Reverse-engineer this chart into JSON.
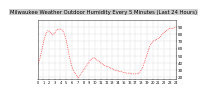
{
  "title": "Milwaukee Weather Outdoor Humidity Every 5 Minutes (Last 24 Hours)",
  "bg_color": "#ffffff",
  "plot_bg_color": "#ffffff",
  "grid_color": "#aaaaaa",
  "line_color": "#ff0000",
  "ylim": [
    18,
    100
  ],
  "xlim": [
    0,
    287
  ],
  "y_ticks": [
    20,
    30,
    40,
    50,
    60,
    70,
    80,
    90
  ],
  "y_tick_labels": [
    "20",
    "30",
    "40",
    "50",
    "60",
    "70",
    "80",
    "90"
  ],
  "title_fontsize": 3.8,
  "tick_fontsize": 3.0,
  "line_width": 0.5,
  "humidity": [
    38,
    40,
    42,
    44,
    46,
    49,
    52,
    55,
    58,
    61,
    64,
    67,
    70,
    73,
    75,
    77,
    79,
    81,
    82,
    83,
    84,
    85,
    85,
    84,
    83,
    83,
    82,
    82,
    81,
    80,
    79,
    79,
    79,
    80,
    81,
    82,
    83,
    84,
    85,
    86,
    86,
    87,
    87,
    87,
    87,
    87,
    87,
    87,
    87,
    86,
    86,
    85,
    84,
    83,
    82,
    80,
    78,
    76,
    74,
    71,
    68,
    65,
    62,
    58,
    55,
    51,
    48,
    45,
    42,
    39,
    37,
    35,
    33,
    31,
    29,
    28,
    27,
    26,
    25,
    24,
    23,
    22,
    21,
    20,
    20,
    20,
    21,
    22,
    23,
    24,
    25,
    26,
    27,
    28,
    29,
    30,
    31,
    32,
    33,
    34,
    35,
    36,
    37,
    38,
    39,
    40,
    41,
    42,
    43,
    44,
    45,
    45,
    46,
    46,
    47,
    47,
    47,
    47,
    47,
    46,
    46,
    45,
    45,
    44,
    44,
    43,
    43,
    42,
    42,
    41,
    41,
    40,
    40,
    39,
    39,
    38,
    38,
    37,
    37,
    37,
    36,
    36,
    36,
    35,
    35,
    35,
    35,
    34,
    34,
    34,
    33,
    33,
    33,
    32,
    32,
    32,
    32,
    31,
    31,
    31,
    31,
    30,
    30,
    30,
    30,
    30,
    29,
    29,
    29,
    29,
    29,
    28,
    28,
    28,
    28,
    28,
    28,
    27,
    27,
    27,
    27,
    27,
    27,
    27,
    26,
    26,
    26,
    26,
    26,
    26,
    26,
    26,
    26,
    25,
    25,
    25,
    25,
    25,
    25,
    25,
    25,
    25,
    25,
    25,
    25,
    25,
    25,
    25,
    26,
    26,
    26,
    27,
    27,
    28,
    29,
    30,
    31,
    32,
    33,
    35,
    37,
    39,
    41,
    43,
    45,
    47,
    49,
    51,
    53,
    55,
    57,
    59,
    61,
    63,
    64,
    66,
    67,
    68,
    68,
    69,
    70,
    70,
    71,
    71,
    71,
    72,
    72,
    72,
    73,
    73,
    74,
    74,
    75,
    75,
    76,
    76,
    77,
    78,
    79,
    79,
    80,
    81,
    81,
    82,
    83,
    83,
    84,
    84,
    85,
    85,
    86,
    86,
    87,
    87,
    88,
    88,
    88,
    88,
    88,
    88,
    88,
    88,
    88,
    88,
    89,
    89,
    89,
    90
  ]
}
